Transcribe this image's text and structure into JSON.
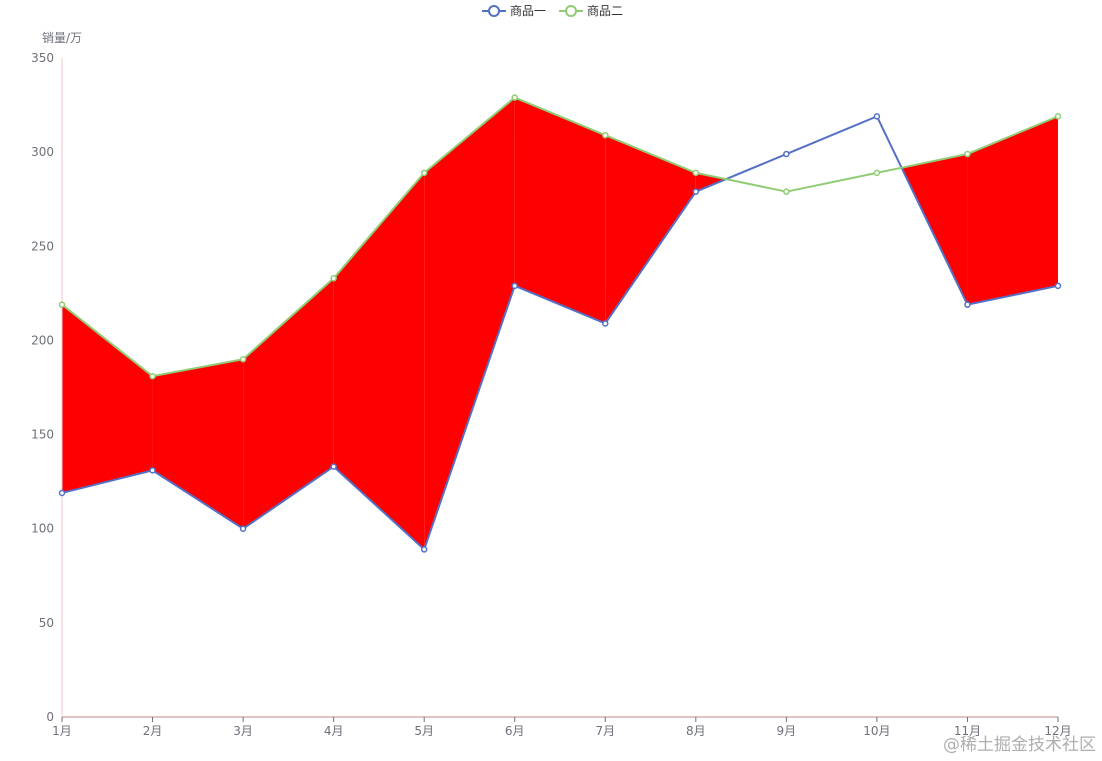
{
  "chart_data": {
    "type": "line",
    "title": "",
    "xlabel": "",
    "ylabel": "销量/万",
    "categories": [
      "1月",
      "2月",
      "3月",
      "4月",
      "5月",
      "6月",
      "7月",
      "8月",
      "9月",
      "10月",
      "11月",
      "12月"
    ],
    "series": [
      {
        "name": "商品一",
        "values": [
          119,
          131,
          100,
          133,
          89,
          229,
          209,
          279,
          299,
          319,
          219,
          229
        ],
        "color": "#5470c6"
      },
      {
        "name": "商品二",
        "values": [
          219,
          181,
          190,
          233,
          289,
          329,
          309,
          289,
          279,
          289,
          299,
          319
        ],
        "color": "#91cc75"
      }
    ],
    "ylim": [
      0,
      350
    ],
    "yticks": [
      0,
      50,
      100,
      150,
      200,
      250,
      300,
      350
    ],
    "fill_between": {
      "color": "#ff0000",
      "where": "series2 above series1"
    },
    "legend_position": "top-center",
    "grid": false
  },
  "watermark": "@稀土掘金技术社区"
}
